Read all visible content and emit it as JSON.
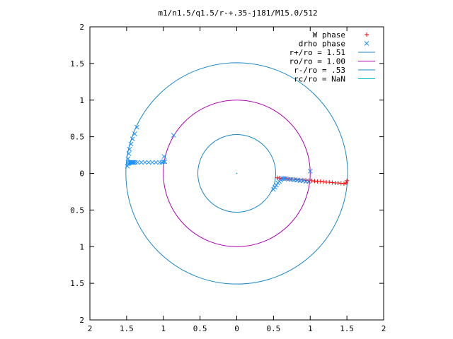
{
  "chart_data": {
    "type": "scatter",
    "title": "m1/n1.5/q1.5/r-+.35-j181/M15.0/512",
    "xlabel": "",
    "ylabel": "",
    "xlim": [
      -2,
      2
    ],
    "ylim": [
      -2,
      2
    ],
    "grid": false,
    "legend_placement": "top-right",
    "x_ticks": [
      {
        "value": -2,
        "label": "2"
      },
      {
        "value": -1.5,
        "label": "1.5"
      },
      {
        "value": -1,
        "label": "1"
      },
      {
        "value": -0.5,
        "label": "0.5"
      },
      {
        "value": 0,
        "label": "0"
      },
      {
        "value": 0.5,
        "label": "0.5"
      },
      {
        "value": 1,
        "label": "1"
      },
      {
        "value": 1.5,
        "label": "1.5"
      },
      {
        "value": 2,
        "label": "2"
      }
    ],
    "y_ticks": [
      {
        "value": 2,
        "label": "2"
      },
      {
        "value": 1.5,
        "label": "1.5"
      },
      {
        "value": 1,
        "label": "1"
      },
      {
        "value": 0.5,
        "label": "0.5"
      },
      {
        "value": 0,
        "label": "0"
      },
      {
        "value": -0.5,
        "label": "0.5"
      },
      {
        "value": -1,
        "label": "1"
      },
      {
        "value": -1.5,
        "label": "1.5"
      },
      {
        "value": -2,
        "label": "2"
      }
    ],
    "series": [
      {
        "name": "W phase",
        "marker": "plus",
        "color": "#ff0000",
        "x": [
          0.55,
          0.58,
          0.62,
          0.66,
          0.7,
          0.74,
          0.78,
          0.82,
          0.86,
          0.9,
          0.94,
          0.98,
          1.02,
          1.06,
          1.1,
          1.14,
          1.18,
          1.22,
          1.26,
          1.3,
          1.34,
          1.38,
          1.42,
          1.46,
          1.49,
          1.5
        ],
        "y": [
          -0.06,
          -0.065,
          -0.07,
          -0.07,
          -0.075,
          -0.08,
          -0.08,
          -0.085,
          -0.09,
          -0.09,
          -0.095,
          -0.1,
          -0.1,
          -0.105,
          -0.11,
          -0.11,
          -0.115,
          -0.12,
          -0.12,
          -0.125,
          -0.13,
          -0.13,
          -0.135,
          -0.14,
          -0.13,
          -0.1
        ]
      },
      {
        "name": "drho phase",
        "marker": "cross",
        "color": "#1e90ff",
        "x": [
          -1.48,
          -1.47,
          -1.46,
          -1.45,
          -1.44,
          -1.43,
          -1.42,
          -1.41,
          -1.4,
          -1.38,
          -1.35,
          -1.3,
          -1.25,
          -1.2,
          -1.15,
          -1.1,
          -1.05,
          -1.02,
          -1.0,
          -0.98,
          -1.49,
          -1.48,
          -1.47,
          -1.46,
          -1.44,
          -1.42,
          -1.39,
          -1.36,
          -0.86,
          -0.99,
          0.5,
          0.52,
          0.54,
          0.56,
          0.58,
          0.6,
          0.62,
          0.64,
          0.66,
          0.7,
          0.74,
          0.78,
          0.82,
          0.86,
          0.9,
          0.94,
          0.98,
          1.0
        ],
        "y": [
          0.13,
          0.14,
          0.15,
          0.15,
          0.15,
          0.15,
          0.15,
          0.15,
          0.15,
          0.15,
          0.15,
          0.15,
          0.15,
          0.15,
          0.15,
          0.15,
          0.15,
          0.15,
          0.16,
          0.16,
          0.1,
          0.2,
          0.27,
          0.33,
          0.4,
          0.47,
          0.54,
          0.63,
          0.52,
          0.23,
          -0.22,
          -0.19,
          -0.16,
          -0.13,
          -0.11,
          -0.09,
          -0.07,
          -0.07,
          -0.07,
          -0.08,
          -0.08,
          -0.09,
          -0.09,
          -0.1,
          -0.1,
          -0.11,
          -0.11,
          0.03
        ]
      },
      {
        "name": "r+/ro = 1.51",
        "type": "circle",
        "radius": 1.51,
        "color": "#1b88c8"
      },
      {
        "name": "ro/ro = 1.00",
        "type": "circle",
        "radius": 1.0,
        "color": "#b000b0"
      },
      {
        "name": "r-/ro = .53",
        "type": "circle",
        "radius": 0.53,
        "color": "#1b88c8"
      },
      {
        "name": "rc/ro = NaN",
        "type": "circle",
        "radius": null,
        "color": "#00c0c0"
      }
    ]
  }
}
